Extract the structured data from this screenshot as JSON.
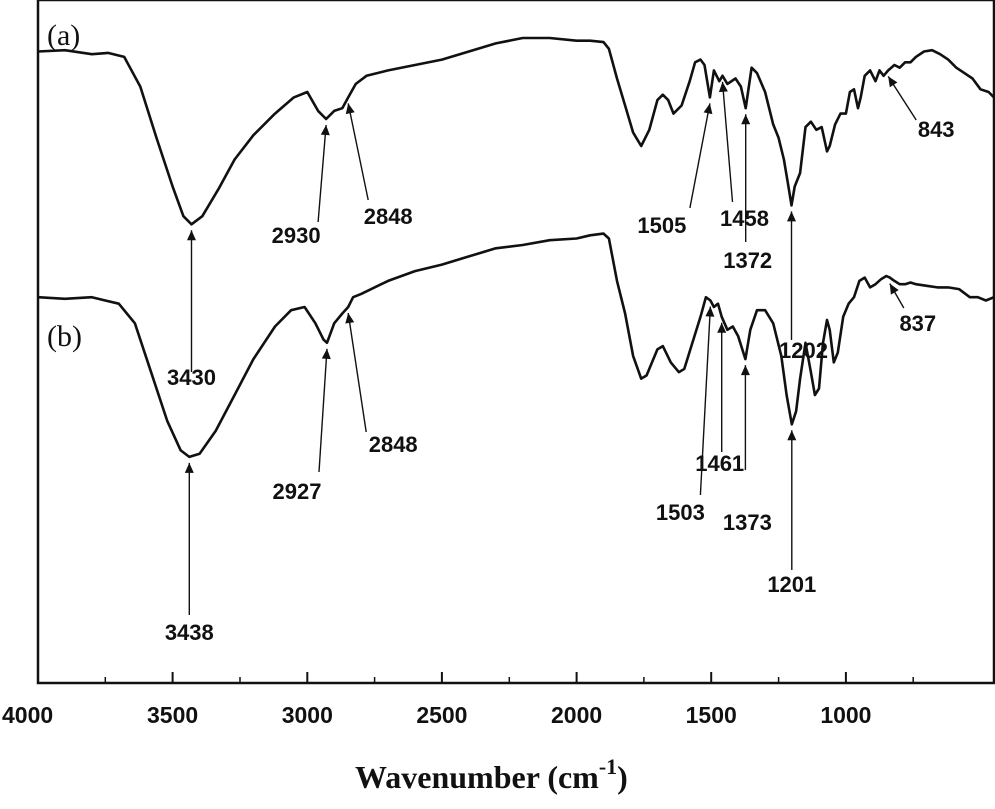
{
  "chart_data": {
    "type": "line",
    "xlim": [
      4000,
      450
    ],
    "x_reversed": true,
    "xticks": [
      4000,
      3500,
      3000,
      2500,
      2000,
      1500,
      1000
    ],
    "xlabel_main": "Wavenumber (cm",
    "xlabel_sup": "-1",
    "xlabel_close": ")",
    "yaxis_ticks": "none",
    "series": [
      {
        "panel_label": "(a)",
        "points": [
          [
            4000,
            0.95
          ],
          [
            3900,
            0.955
          ],
          [
            3800,
            0.94
          ],
          [
            3740,
            0.945
          ],
          [
            3680,
            0.93
          ],
          [
            3620,
            0.82
          ],
          [
            3560,
            0.63
          ],
          [
            3500,
            0.45
          ],
          [
            3460,
            0.34
          ],
          [
            3430,
            0.31
          ],
          [
            3390,
            0.34
          ],
          [
            3330,
            0.44
          ],
          [
            3270,
            0.55
          ],
          [
            3200,
            0.64
          ],
          [
            3120,
            0.72
          ],
          [
            3050,
            0.78
          ],
          [
            3000,
            0.8
          ],
          [
            2960,
            0.73
          ],
          [
            2930,
            0.7
          ],
          [
            2900,
            0.73
          ],
          [
            2870,
            0.74
          ],
          [
            2848,
            0.78
          ],
          [
            2820,
            0.83
          ],
          [
            2780,
            0.86
          ],
          [
            2700,
            0.88
          ],
          [
            2600,
            0.9
          ],
          [
            2500,
            0.92
          ],
          [
            2400,
            0.95
          ],
          [
            2300,
            0.98
          ],
          [
            2200,
            1.0
          ],
          [
            2100,
            1.0
          ],
          [
            2000,
            0.99
          ],
          [
            1950,
            0.99
          ],
          [
            1900,
            0.985
          ],
          [
            1880,
            0.96
          ],
          [
            1850,
            0.85
          ],
          [
            1820,
            0.75
          ],
          [
            1790,
            0.65
          ],
          [
            1760,
            0.6
          ],
          [
            1730,
            0.66
          ],
          [
            1700,
            0.77
          ],
          [
            1680,
            0.79
          ],
          [
            1660,
            0.77
          ],
          [
            1640,
            0.72
          ],
          [
            1610,
            0.75
          ],
          [
            1580,
            0.84
          ],
          [
            1560,
            0.91
          ],
          [
            1540,
            0.92
          ],
          [
            1525,
            0.9
          ],
          [
            1505,
            0.78
          ],
          [
            1490,
            0.88
          ],
          [
            1470,
            0.84
          ],
          [
            1458,
            0.86
          ],
          [
            1440,
            0.83
          ],
          [
            1410,
            0.85
          ],
          [
            1390,
            0.82
          ],
          [
            1372,
            0.74
          ],
          [
            1350,
            0.89
          ],
          [
            1330,
            0.87
          ],
          [
            1300,
            0.8
          ],
          [
            1270,
            0.68
          ],
          [
            1250,
            0.63
          ],
          [
            1230,
            0.55
          ],
          [
            1215,
            0.46
          ],
          [
            1202,
            0.38
          ],
          [
            1190,
            0.45
          ],
          [
            1170,
            0.5
          ],
          [
            1150,
            0.67
          ],
          [
            1130,
            0.69
          ],
          [
            1110,
            0.66
          ],
          [
            1090,
            0.67
          ],
          [
            1070,
            0.58
          ],
          [
            1060,
            0.6
          ],
          [
            1040,
            0.68
          ],
          [
            1020,
            0.72
          ],
          [
            1000,
            0.72
          ],
          [
            985,
            0.8
          ],
          [
            970,
            0.81
          ],
          [
            955,
            0.74
          ],
          [
            945,
            0.78
          ],
          [
            930,
            0.86
          ],
          [
            910,
            0.88
          ],
          [
            890,
            0.84
          ],
          [
            875,
            0.88
          ],
          [
            860,
            0.86
          ],
          [
            843,
            0.88
          ],
          [
            820,
            0.9
          ],
          [
            800,
            0.89
          ],
          [
            780,
            0.91
          ],
          [
            760,
            0.91
          ],
          [
            740,
            0.93
          ],
          [
            710,
            0.95
          ],
          [
            680,
            0.955
          ],
          [
            650,
            0.94
          ],
          [
            620,
            0.92
          ],
          [
            590,
            0.89
          ],
          [
            560,
            0.87
          ],
          [
            530,
            0.85
          ],
          [
            500,
            0.81
          ],
          [
            470,
            0.8
          ],
          [
            450,
            0.78
          ]
        ],
        "annotations": [
          {
            "text": "3430",
            "x": 3430
          },
          {
            "text": "2930",
            "x": 2930
          },
          {
            "text": "2848",
            "x": 2848
          },
          {
            "text": "1505",
            "x": 1505
          },
          {
            "text": "1458",
            "x": 1458
          },
          {
            "text": "1372",
            "x": 1372
          },
          {
            "text": "1202",
            "x": 1202
          },
          {
            "text": "843",
            "x": 843
          }
        ]
      },
      {
        "panel_label": "(b)",
        "points": [
          [
            4000,
            0.8
          ],
          [
            3900,
            0.795
          ],
          [
            3800,
            0.8
          ],
          [
            3750,
            0.79
          ],
          [
            3700,
            0.78
          ],
          [
            3640,
            0.72
          ],
          [
            3580,
            0.57
          ],
          [
            3520,
            0.42
          ],
          [
            3470,
            0.33
          ],
          [
            3438,
            0.31
          ],
          [
            3400,
            0.32
          ],
          [
            3340,
            0.39
          ],
          [
            3270,
            0.5
          ],
          [
            3200,
            0.61
          ],
          [
            3120,
            0.71
          ],
          [
            3060,
            0.76
          ],
          [
            3010,
            0.77
          ],
          [
            2970,
            0.72
          ],
          [
            2940,
            0.67
          ],
          [
            2927,
            0.66
          ],
          [
            2900,
            0.72
          ],
          [
            2870,
            0.75
          ],
          [
            2848,
            0.77
          ],
          [
            2830,
            0.8
          ],
          [
            2800,
            0.81
          ],
          [
            2700,
            0.85
          ],
          [
            2600,
            0.88
          ],
          [
            2500,
            0.9
          ],
          [
            2400,
            0.925
          ],
          [
            2300,
            0.95
          ],
          [
            2200,
            0.96
          ],
          [
            2100,
            0.975
          ],
          [
            2000,
            0.98
          ],
          [
            1950,
            0.99
          ],
          [
            1900,
            0.995
          ],
          [
            1880,
            0.98
          ],
          [
            1850,
            0.85
          ],
          [
            1820,
            0.75
          ],
          [
            1790,
            0.62
          ],
          [
            1760,
            0.55
          ],
          [
            1740,
            0.56
          ],
          [
            1720,
            0.6
          ],
          [
            1700,
            0.64
          ],
          [
            1680,
            0.65
          ],
          [
            1650,
            0.6
          ],
          [
            1620,
            0.57
          ],
          [
            1600,
            0.58
          ],
          [
            1570,
            0.66
          ],
          [
            1540,
            0.74
          ],
          [
            1520,
            0.8
          ],
          [
            1503,
            0.79
          ],
          [
            1490,
            0.77
          ],
          [
            1475,
            0.78
          ],
          [
            1461,
            0.74
          ],
          [
            1440,
            0.7
          ],
          [
            1420,
            0.71
          ],
          [
            1400,
            0.68
          ],
          [
            1373,
            0.61
          ],
          [
            1355,
            0.7
          ],
          [
            1330,
            0.76
          ],
          [
            1300,
            0.76
          ],
          [
            1270,
            0.72
          ],
          [
            1240,
            0.62
          ],
          [
            1220,
            0.5
          ],
          [
            1201,
            0.41
          ],
          [
            1185,
            0.45
          ],
          [
            1170,
            0.55
          ],
          [
            1150,
            0.66
          ],
          [
            1130,
            0.57
          ],
          [
            1115,
            0.5
          ],
          [
            1100,
            0.52
          ],
          [
            1085,
            0.66
          ],
          [
            1070,
            0.73
          ],
          [
            1060,
            0.7
          ],
          [
            1045,
            0.6
          ],
          [
            1030,
            0.63
          ],
          [
            1010,
            0.74
          ],
          [
            990,
            0.78
          ],
          [
            970,
            0.8
          ],
          [
            950,
            0.85
          ],
          [
            930,
            0.86
          ],
          [
            910,
            0.83
          ],
          [
            890,
            0.84
          ],
          [
            870,
            0.855
          ],
          [
            850,
            0.865
          ],
          [
            837,
            0.86
          ],
          [
            820,
            0.85
          ],
          [
            800,
            0.84
          ],
          [
            780,
            0.84
          ],
          [
            760,
            0.845
          ],
          [
            740,
            0.84
          ],
          [
            700,
            0.835
          ],
          [
            660,
            0.83
          ],
          [
            620,
            0.83
          ],
          [
            580,
            0.825
          ],
          [
            540,
            0.8
          ],
          [
            510,
            0.8
          ],
          [
            480,
            0.79
          ],
          [
            450,
            0.8
          ]
        ],
        "annotations": [
          {
            "text": "3438",
            "x": 3438
          },
          {
            "text": "2927",
            "x": 2927
          },
          {
            "text": "2848",
            "x": 2848
          },
          {
            "text": "1503",
            "x": 1503
          },
          {
            "text": "1461",
            "x": 1461
          },
          {
            "text": "1373",
            "x": 1373
          },
          {
            "text": "1201",
            "x": 1201
          },
          {
            "text": "837",
            "x": 837
          }
        ]
      }
    ]
  }
}
